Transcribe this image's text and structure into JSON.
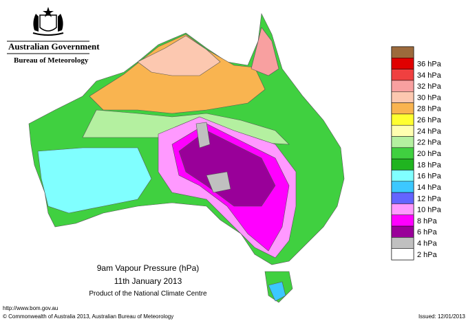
{
  "header": {
    "government": "Australian Government",
    "bureau": "Bureau of Meteorology"
  },
  "legend": {
    "items": [
      {
        "color": "#9c6a3c"
      },
      {
        "label": "36 hPa",
        "color": "#e00000"
      },
      {
        "label": "34 hPa",
        "color": "#f04040"
      },
      {
        "label": "32 hPa",
        "color": "#f8a0a0"
      },
      {
        "label": "30 hPa",
        "color": "#fcc8b0"
      },
      {
        "label": "28 hPa",
        "color": "#f9b450"
      },
      {
        "label": "26 hPa",
        "color": "#ffff30"
      },
      {
        "label": "24 hPa",
        "color": "#ffffb0"
      },
      {
        "label": "22 hPa",
        "color": "#b4f0a0"
      },
      {
        "label": "20 hPa",
        "color": "#40d040"
      },
      {
        "label": "18 hPa",
        "color": "#20b420"
      },
      {
        "label": "16 hPa",
        "color": "#80ffff"
      },
      {
        "label": "14 hPa",
        "color": "#3cc8ff"
      },
      {
        "label": "12 hPa",
        "color": "#6464ff"
      },
      {
        "label": "10 hPa",
        "color": "#ff99ff"
      },
      {
        "label": "8 hPa",
        "color": "#ff00ff"
      },
      {
        "label": "6 hPa",
        "color": "#990099"
      },
      {
        "label": "4 hPa",
        "color": "#c0c0c0"
      },
      {
        "label": "2 hPa",
        "color": "#ffffff"
      }
    ]
  },
  "caption": {
    "title": "9am Vapour Pressure (hPa)",
    "date": "11th January 2013",
    "credit": "Product of the National Climate Centre"
  },
  "footer": {
    "url": "http://www.bom.gov.au",
    "copyright": "© Commonwealth of Australia 2013, Australian Bureau of Meteorology",
    "issued": "Issued: 12/01/2013"
  }
}
